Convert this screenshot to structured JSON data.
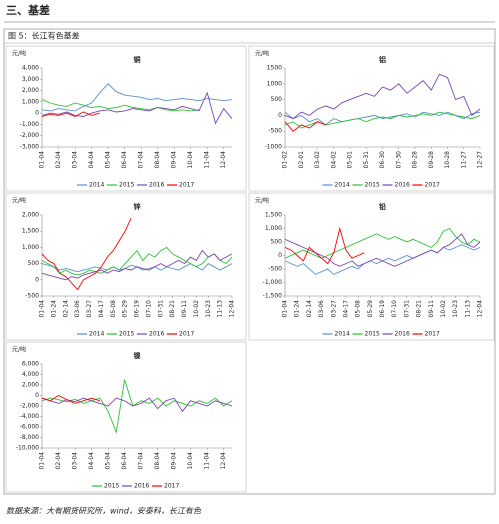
{
  "header": {
    "title": "三、基差"
  },
  "figure": {
    "caption": "图 5：长江有色基差"
  },
  "source": "数据来源：大有期货研究所，wind，安泰科，长江有色",
  "chart_data": [
    {
      "type": "line",
      "title": "铜",
      "y_label": "元/吨",
      "grid": false,
      "legend": "bottom",
      "categories": [
        "01-04",
        null,
        "02-04",
        null,
        "03-04",
        null,
        "04-04",
        null,
        "05-04",
        null,
        "06-04",
        null,
        "07-04",
        null,
        "08-04",
        null,
        "09-04",
        null,
        "10-04",
        null,
        "11-04",
        null,
        "12-04",
        null
      ],
      "ylim": [
        -3000,
        4000
      ],
      "yticks": [
        {
          "value": -3000,
          "label": "-3,000"
        },
        {
          "value": -2000,
          "label": "-2,000"
        },
        {
          "value": -1000,
          "label": "-1,000"
        },
        0,
        {
          "value": 1000,
          "label": "1,000"
        },
        {
          "value": 2000,
          "label": "2,000"
        },
        {
          "value": 3000,
          "label": "3,000"
        },
        {
          "value": 4000,
          "label": "4,000"
        }
      ],
      "series": [
        {
          "name": "2014",
          "color": "#5b8fc9",
          "values": [
            300,
            200,
            400,
            300,
            200,
            600,
            900,
            1800,
            2600,
            1900,
            1600,
            1500,
            1400,
            1200,
            1300,
            1100,
            1200,
            1300,
            1200,
            1100,
            1300,
            1200,
            1100,
            1200
          ]
        },
        {
          "name": "2015",
          "color": "#2fbf3a",
          "values": [
            1200,
            900,
            700,
            600,
            900,
            700,
            500,
            600,
            400,
            500,
            700,
            500,
            400,
            300,
            500,
            300,
            200,
            300,
            200,
            300,
            null,
            null,
            null,
            null
          ]
        },
        {
          "name": "2016",
          "color": "#7a45b0",
          "values": [
            -200,
            0,
            -100,
            100,
            -200,
            -300,
            0,
            200,
            300,
            100,
            200,
            400,
            300,
            200,
            500,
            400,
            300,
            600,
            400,
            200,
            1800,
            -900,
            400,
            -500
          ]
        },
        {
          "name": "2017",
          "color": "#ff0000",
          "values": [
            -300,
            -100,
            -200,
            0,
            -300,
            100,
            -200,
            0,
            null,
            null,
            null,
            null,
            null,
            null,
            null,
            null,
            null,
            null,
            null,
            null,
            null,
            null,
            null,
            null
          ]
        }
      ]
    },
    {
      "type": "line",
      "title": "铝",
      "y_label": "元/吨",
      "grid": false,
      "legend": "bottom",
      "categories": [
        "01-02",
        null,
        "02-01",
        null,
        "03-02",
        null,
        "04-02",
        null,
        "05-01",
        null,
        "05-31",
        null,
        "06-30",
        null,
        "07-30",
        null,
        "08-28",
        null,
        "09-28",
        null,
        "10-28",
        null,
        "11-27",
        null,
        "12-27"
      ],
      "ylim": [
        -1000,
        1500
      ],
      "yticks": [
        -1000,
        -500,
        0,
        500,
        1000,
        1500
      ],
      "series": [
        {
          "name": "2014",
          "color": "#5b8fc9",
          "values": [
            100,
            -100,
            0,
            -200,
            -100,
            -300,
            -100,
            -200,
            -150,
            -100,
            -50,
            0,
            -100,
            -50,
            0,
            50,
            -50,
            100,
            50,
            0,
            100,
            0,
            -100,
            50,
            100
          ]
        },
        {
          "name": "2015",
          "color": "#2fbf3a",
          "values": [
            -300,
            -200,
            -400,
            -300,
            -200,
            -300,
            -250,
            -200,
            -150,
            -100,
            -200,
            -100,
            -50,
            -100,
            0,
            -50,
            0,
            50,
            0,
            100,
            50,
            0,
            -50,
            -100,
            0
          ]
        },
        {
          "name": "2016",
          "color": "#7a45b0",
          "values": [
            0,
            -100,
            100,
            0,
            200,
            300,
            200,
            400,
            500,
            600,
            700,
            600,
            900,
            800,
            1000,
            700,
            900,
            1100,
            800,
            1300,
            1200,
            500,
            600,
            0,
            200
          ]
        },
        {
          "name": "2017",
          "color": "#ff0000",
          "values": [
            -200,
            -500,
            -300,
            -400,
            -200,
            -300,
            null,
            null,
            null,
            null,
            null,
            null,
            null,
            null,
            null,
            null,
            null,
            null,
            null,
            null,
            null,
            null,
            null,
            null,
            null
          ]
        }
      ]
    },
    {
      "type": "line",
      "title": "锌",
      "y_label": "元/吨",
      "grid": false,
      "legend": "bottom",
      "categories": [
        "01-04",
        null,
        "01-24",
        null,
        "02-14",
        null,
        "03-06",
        null,
        "03-27",
        null,
        "04-17",
        null,
        "05-08",
        null,
        "05-29",
        null,
        "06-19",
        null,
        "07-10",
        null,
        "07-31",
        null,
        "08-21",
        null,
        "09-11",
        null,
        "10-02",
        null,
        "10-23",
        null,
        "11-13",
        null,
        "12-04"
      ],
      "ylim": [
        -500,
        2000
      ],
      "yticks": [
        -500,
        0,
        500,
        {
          "value": 1000,
          "label": "1,000"
        },
        {
          "value": 1500,
          "label": "1,500"
        },
        {
          "value": 2000,
          "label": "2,000"
        }
      ],
      "series": [
        {
          "name": "2014",
          "color": "#5b8fc9",
          "values": [
            500,
            450,
            400,
            300,
            350,
            300,
            250,
            300,
            350,
            400,
            350,
            300,
            400,
            300,
            350,
            450,
            400,
            300,
            350,
            400,
            300,
            400,
            350,
            300,
            400,
            500,
            400,
            300,
            500,
            400,
            300,
            400,
            500
          ]
        },
        {
          "name": "2015",
          "color": "#2fbf3a",
          "values": [
            600,
            500,
            400,
            200,
            300,
            200,
            150,
            200,
            300,
            250,
            200,
            300,
            400,
            300,
            500,
            700,
            900,
            600,
            800,
            700,
            900,
            1000,
            800,
            700,
            600,
            500,
            400,
            500,
            700,
            800,
            600,
            500,
            700
          ]
        },
        {
          "name": "2016",
          "color": "#7a45b0",
          "values": [
            200,
            150,
            100,
            50,
            0,
            100,
            50,
            150,
            200,
            250,
            300,
            200,
            300,
            250,
            350,
            300,
            400,
            350,
            300,
            400,
            500,
            400,
            500,
            600,
            500,
            700,
            600,
            900,
            700,
            800,
            600,
            700,
            800
          ]
        },
        {
          "name": "2017",
          "color": "#ff0000",
          "values": [
            800,
            600,
            500,
            200,
            100,
            -100,
            -300,
            0,
            100,
            200,
            400,
            700,
            900,
            1200,
            1500,
            1900,
            null,
            null,
            null,
            null,
            null,
            null,
            null,
            null,
            null,
            null,
            null,
            null,
            null,
            null,
            null,
            null,
            null
          ]
        }
      ]
    },
    {
      "type": "line",
      "title": "铅",
      "y_label": "元/吨",
      "grid": false,
      "legend": "bottom",
      "categories": [
        "01-04",
        null,
        "01-24",
        null,
        "02-14",
        null,
        "03-06",
        null,
        "03-27",
        null,
        "04-17",
        null,
        "05-08",
        null,
        "05-29",
        null,
        "06-19",
        null,
        "07-10",
        null,
        "07-31",
        null,
        "08-21",
        null,
        "09-11",
        null,
        "10-02",
        null,
        "10-23",
        null,
        "11-13",
        null,
        "12-04"
      ],
      "ylim": [
        -1500,
        1500
      ],
      "yticks": [
        {
          "value": -1500,
          "label": "-1,500"
        },
        {
          "value": -1000,
          "label": "-1,000"
        },
        -500,
        0,
        500,
        {
          "value": 1000,
          "label": "1,000"
        },
        {
          "value": 1500,
          "label": "1,500"
        }
      ],
      "series": [
        {
          "name": "2014",
          "color": "#5b8fc9",
          "values": [
            -200,
            -300,
            -400,
            -300,
            -500,
            -700,
            -600,
            -500,
            -700,
            -600,
            -500,
            -400,
            -500,
            -300,
            -200,
            -300,
            -200,
            -100,
            -200,
            -100,
            0,
            -100,
            0,
            100,
            200,
            100,
            300,
            200,
            300,
            400,
            300,
            200,
            300
          ]
        },
        {
          "name": "2015",
          "color": "#2fbf3a",
          "values": [
            -100,
            0,
            100,
            200,
            100,
            0,
            -100,
            0,
            100,
            200,
            300,
            400,
            500,
            600,
            700,
            800,
            700,
            600,
            700,
            600,
            500,
            600,
            500,
            400,
            300,
            500,
            900,
            1000,
            700,
            500,
            400,
            600,
            500
          ]
        },
        {
          "name": "2016",
          "color": "#7a45b0",
          "values": [
            600,
            500,
            400,
            300,
            200,
            100,
            0,
            -100,
            -300,
            -400,
            -300,
            -200,
            -400,
            -300,
            -200,
            -100,
            -200,
            -300,
            -400,
            -300,
            -200,
            -100,
            0,
            100,
            200,
            100,
            300,
            400,
            600,
            800,
            400,
            300,
            500
          ]
        },
        {
          "name": "2017",
          "color": "#ff0000",
          "values": [
            300,
            200,
            0,
            -200,
            300,
            100,
            -100,
            -300,
            100,
            1000,
            200,
            -100,
            0,
            100,
            null,
            null,
            null,
            null,
            null,
            null,
            null,
            null,
            null,
            null,
            null,
            null,
            null,
            null,
            null,
            null,
            null,
            null,
            null
          ]
        }
      ]
    },
    {
      "type": "line",
      "title": "镍",
      "y_label": "元/吨",
      "grid": false,
      "legend": "bottom",
      "categories": [
        "01-04",
        null,
        "02-04",
        null,
        "03-04",
        null,
        "04-04",
        null,
        "05-04",
        null,
        "06-04",
        null,
        "07-04",
        null,
        "08-04",
        null,
        "09-04",
        null,
        "10-04",
        null,
        "11-04",
        null,
        "12-04",
        null
      ],
      "ylim": [
        -10000,
        6000
      ],
      "yticks": [
        {
          "value": -10000,
          "label": "-10,000"
        },
        {
          "value": -8000,
          "label": "-8,000"
        },
        {
          "value": -6000,
          "label": "-6,000"
        },
        {
          "value": -4000,
          "label": "-4,000"
        },
        {
          "value": -2000,
          "label": "-2,000"
        },
        0,
        {
          "value": 2000,
          "label": "2,000"
        },
        {
          "value": 4000,
          "label": "4,000"
        },
        {
          "value": 6000,
          "label": "6,000"
        }
      ],
      "series": [
        {
          "name": "2015",
          "color": "#2fbf3a",
          "values": [
            -1000,
            -500,
            -800,
            -1200,
            -700,
            -1500,
            -1000,
            -500,
            -3000,
            -7000,
            3000,
            -2000,
            -1000,
            -1500,
            -500,
            -2000,
            -1000,
            -1500,
            -2000,
            -1000,
            -1500,
            -500,
            -2000,
            -1000
          ]
        },
        {
          "name": "2016",
          "color": "#7a45b0",
          "values": [
            -500,
            -1000,
            -1500,
            -800,
            -1200,
            -500,
            -1000,
            -1500,
            -2000,
            -500,
            -1000,
            -2000,
            -1500,
            -500,
            -2500,
            -1000,
            -500,
            -3000,
            -1000,
            -1500,
            -2000,
            -1000,
            -1500,
            -2000
          ]
        },
        {
          "name": "2017",
          "color": "#ff0000",
          "values": [
            -500,
            -1000,
            0,
            -800,
            -1500,
            -1000,
            -500,
            -1000,
            null,
            null,
            null,
            null,
            null,
            null,
            null,
            null,
            null,
            null,
            null,
            null,
            null,
            null,
            null,
            null
          ]
        }
      ]
    }
  ]
}
